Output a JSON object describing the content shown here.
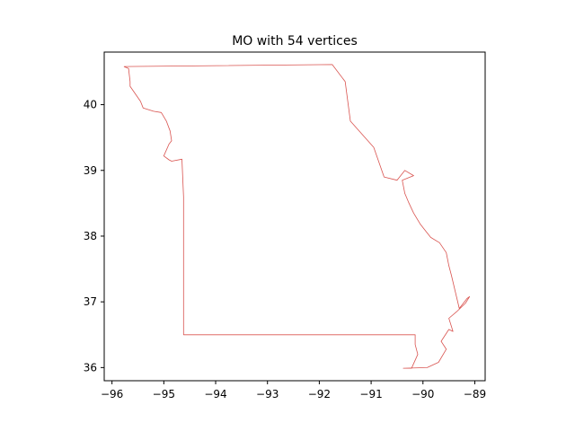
{
  "chart_data": {
    "type": "line",
    "title": "MO with 54 vertices",
    "xlabel": "",
    "ylabel": "",
    "xlim": [
      -96.15,
      -88.8
    ],
    "ylim": [
      35.8,
      40.8
    ],
    "xticks": [
      -96,
      -95,
      -94,
      -93,
      -92,
      -91,
      -90,
      -89
    ],
    "yticks": [
      36,
      37,
      38,
      39,
      40
    ],
    "grid": false,
    "line_color": "#d9534f",
    "series": [
      {
        "x": [
          -95.77,
          -95.68,
          -95.65,
          -95.65,
          -95.45,
          -95.4,
          -95.2,
          -95.05,
          -94.95,
          -94.88,
          -94.85,
          -94.9,
          -95.0,
          -94.9,
          -94.85,
          -94.65,
          -94.62,
          -94.62,
          -94.62,
          -90.15,
          -90.15,
          -90.1,
          -90.22,
          -90.38,
          -89.92,
          -89.7,
          -89.55,
          -89.65,
          -89.5,
          -89.42,
          -89.5,
          -89.35,
          -89.18,
          -89.1,
          -89.15,
          -89.3,
          -89.45,
          -89.5,
          -89.55,
          -89.68,
          -89.85,
          -90.05,
          -90.18,
          -90.28,
          -90.35,
          -90.4,
          -90.18,
          -90.35,
          -90.5,
          -90.75,
          -90.95,
          -91.4,
          -91.5,
          -91.75,
          -95.77
        ],
        "y": [
          40.58,
          40.55,
          40.35,
          40.28,
          40.05,
          39.95,
          39.9,
          39.88,
          39.75,
          39.6,
          39.45,
          39.4,
          39.22,
          39.16,
          39.14,
          39.17,
          38.6,
          37.5,
          36.5,
          36.5,
          36.35,
          36.2,
          35.99,
          35.99,
          36.0,
          36.08,
          36.28,
          36.4,
          36.58,
          36.55,
          36.75,
          36.85,
          36.98,
          37.08,
          37.05,
          36.9,
          37.4,
          37.55,
          37.75,
          37.9,
          37.98,
          38.18,
          38.35,
          38.52,
          38.65,
          38.85,
          38.92,
          39.0,
          38.85,
          38.9,
          39.35,
          39.75,
          40.35,
          40.61,
          40.58
        ]
      }
    ]
  }
}
